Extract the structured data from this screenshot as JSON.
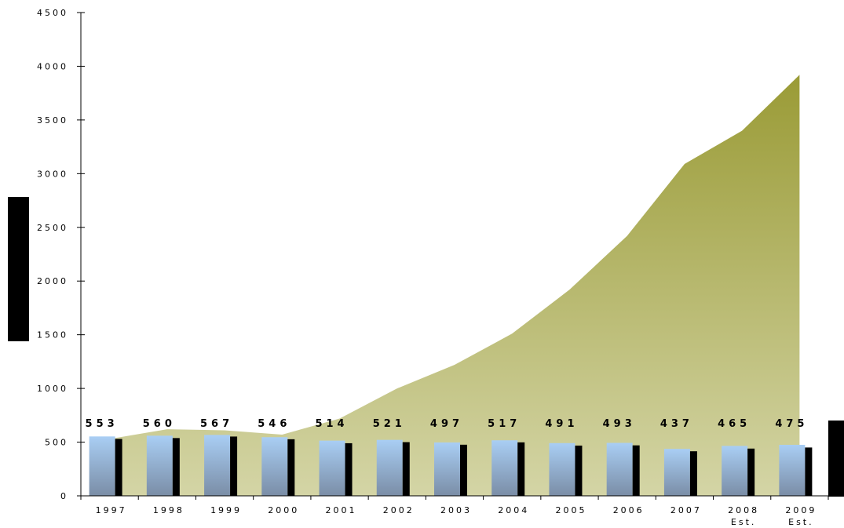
{
  "chart_data": {
    "type": "bar",
    "categories": [
      "1997",
      "1998",
      "1999",
      "2000",
      "2001",
      "2002",
      "2003",
      "2004",
      "2005",
      "2006",
      "2007",
      "2008 Est.",
      "2009 Est."
    ],
    "category_lines": [
      [
        "1997"
      ],
      [
        "1998"
      ],
      [
        "1999"
      ],
      [
        "2000"
      ],
      [
        "2001"
      ],
      [
        "2002"
      ],
      [
        "2003"
      ],
      [
        "2004"
      ],
      [
        "2005"
      ],
      [
        "2006"
      ],
      [
        "2007"
      ],
      [
        "2008",
        "Est."
      ],
      [
        "2009",
        "Est."
      ]
    ],
    "yticks": [
      "0",
      "500",
      "1000",
      "1500",
      "2000",
      "2500",
      "3000",
      "3500",
      "4000",
      "4500"
    ],
    "ylim": [
      0,
      4500
    ],
    "grid": false,
    "series": [
      {
        "type": "area",
        "values": [
          530,
          620,
          610,
          570,
          720,
          1000,
          1220,
          1510,
          1920,
          2420,
          3090,
          3400,
          3920
        ]
      },
      {
        "type": "bar",
        "values": [
          553,
          560,
          567,
          546,
          514,
          521,
          497,
          517,
          491,
          493,
          437,
          465,
          475
        ],
        "labels": [
          "553",
          "560",
          "567",
          "546",
          "514",
          "521",
          "497",
          "517",
          "491",
          "493",
          "437",
          "465",
          "475"
        ]
      },
      {
        "type": "bar",
        "values": [
          530,
          538,
          552,
          527,
          490,
          500,
          476,
          498,
          468,
          470,
          415,
          440,
          450
        ]
      }
    ],
    "colors": {
      "area_light": "#d4d5a6",
      "area_dark": "#9a9b36",
      "bar_light": "#a9cef4",
      "bar_dark": "#7a8da6",
      "bar_black": "#000000"
    }
  }
}
